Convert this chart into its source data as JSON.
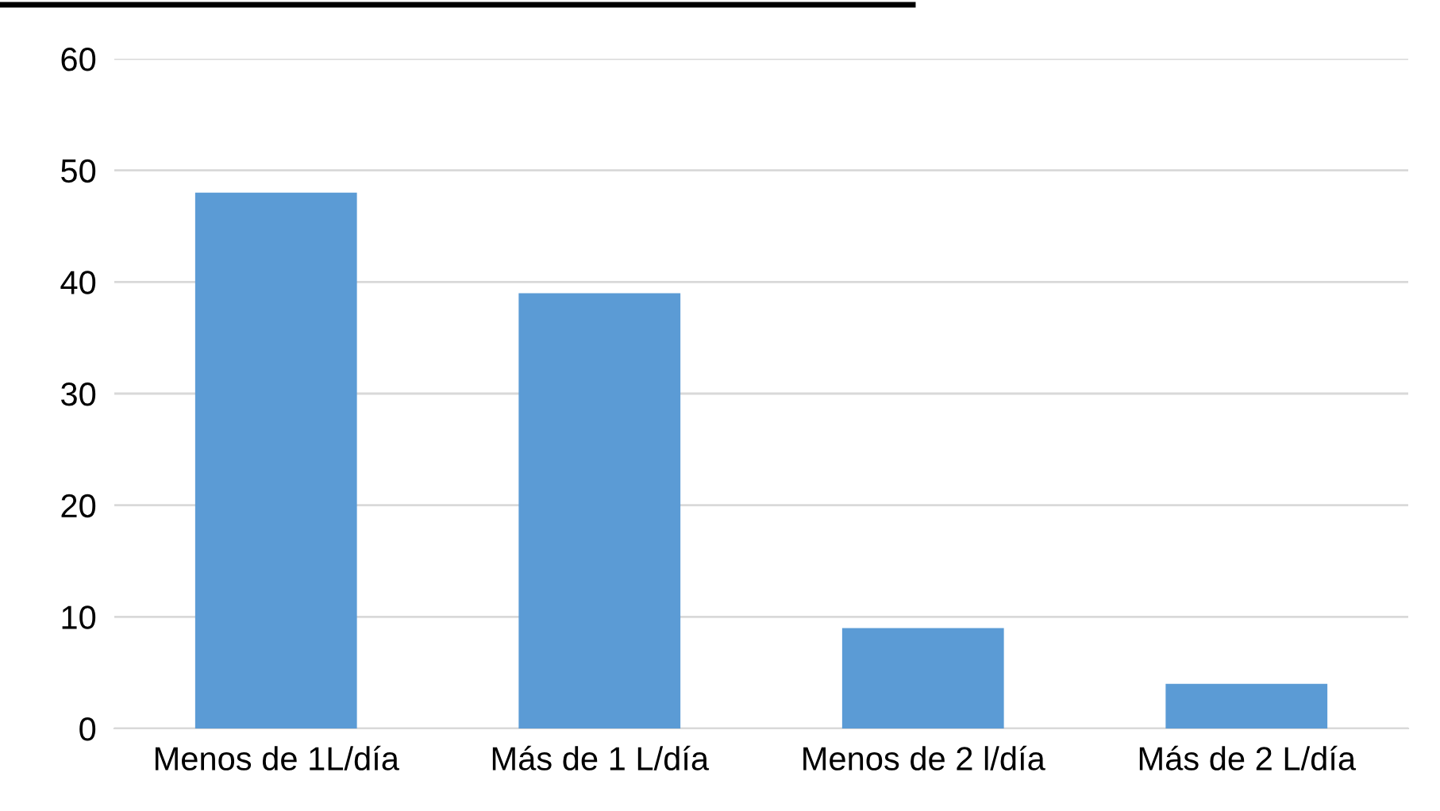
{
  "chart_data": {
    "type": "bar",
    "categories": [
      "Menos de 1L/día",
      "Más de 1 L/día",
      "Menos de 2 l/día",
      "Más de 2 L/día"
    ],
    "values": [
      48,
      39,
      9,
      4
    ],
    "color": "#5b9bd5",
    "ylim": [
      0,
      60
    ],
    "yticks": [
      0,
      10,
      20,
      30,
      40,
      50,
      60
    ],
    "grid": "y"
  }
}
